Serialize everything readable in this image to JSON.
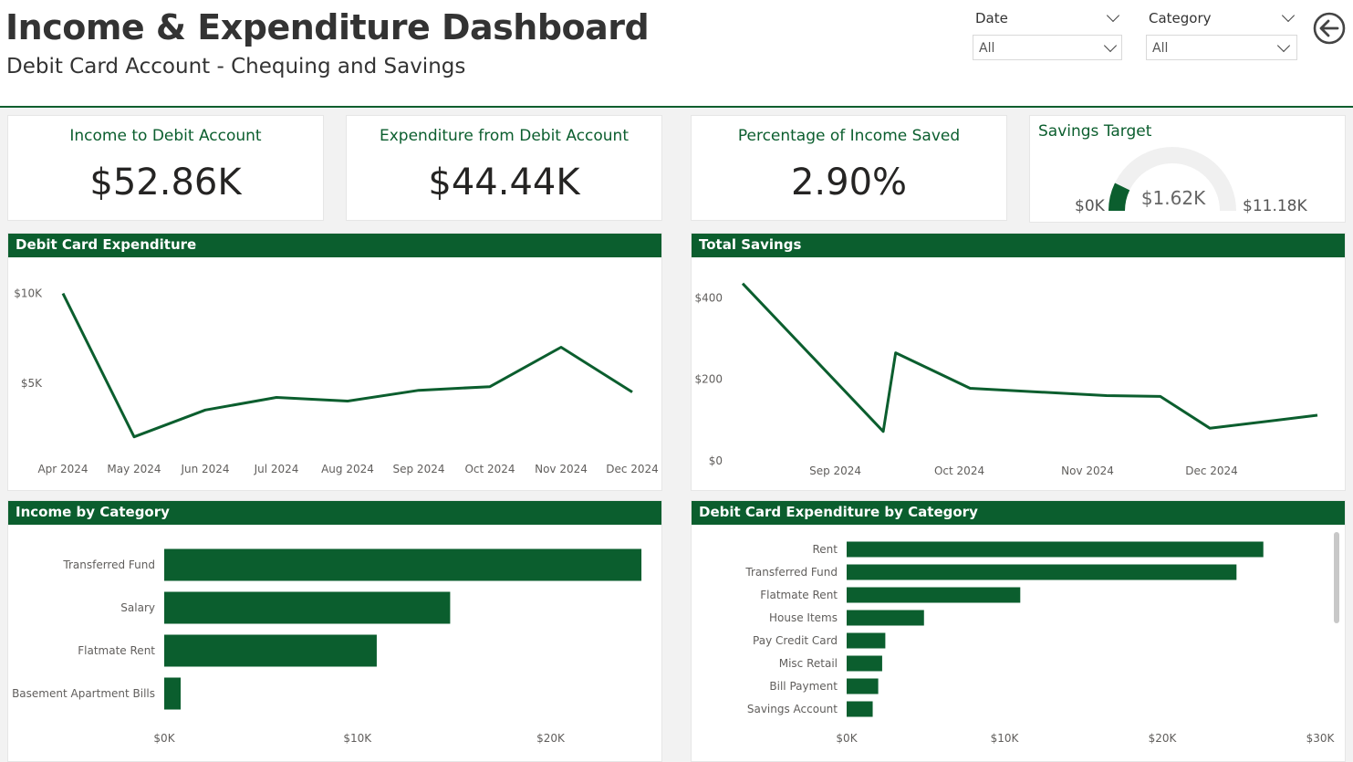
{
  "header": {
    "title": "Income & Expenditure Dashboard",
    "subtitle": "Debit Card Account - Chequing and Savings"
  },
  "slicers": {
    "date": {
      "label": "Date",
      "value": "All"
    },
    "category": {
      "label": "Category",
      "value": "All"
    }
  },
  "back_icon": "back-arrow-icon",
  "colors": {
    "accent": "#0b5e2e",
    "gauge_track": "#f0f0f0",
    "canvas": "#f2f2f2"
  },
  "cards": {
    "income": {
      "title": "Income to Debit Account",
      "value": "$52.86K"
    },
    "expenditure": {
      "title": "Expenditure from Debit Account",
      "value": "$44.44K"
    },
    "saved_pct": {
      "title": "Percentage of Income Saved",
      "value": "2.90%"
    },
    "savings_target": {
      "title": "Savings Target",
      "min_label": "$0K",
      "value_label": "$1.62K",
      "max_label": "$11.18K"
    }
  },
  "chart_data": [
    {
      "id": "debit-expenditure",
      "type": "line",
      "title": "Debit Card Expenditure",
      "x": [
        "Apr 2024",
        "May 2024",
        "Jun 2024",
        "Jul 2024",
        "Aug 2024",
        "Sep 2024",
        "Oct 2024",
        "Nov 2024",
        "Dec 2024"
      ],
      "values": [
        10000,
        2000,
        3500,
        4200,
        4000,
        4600,
        4800,
        7000,
        4500
      ],
      "y_ticks": [
        {
          "label": "$5K",
          "value": 5000
        },
        {
          "label": "$10K",
          "value": 10000
        }
      ],
      "ylim": [
        0,
        11000
      ],
      "grid": false
    },
    {
      "id": "total-savings",
      "type": "line",
      "title": "Total Savings",
      "x_ticks": [
        {
          "label": "Sep 2024",
          "value": "2024-09-01"
        },
        {
          "label": "Oct 2024",
          "value": "2024-10-01"
        },
        {
          "label": "Nov 2024",
          "value": "2024-11-01"
        },
        {
          "label": "Dec 2024",
          "value": "2024-12-01"
        }
      ],
      "xlim": [
        "2024-08-14",
        "2024-12-31"
      ],
      "points": [
        {
          "x": "2024-08-14",
          "y": 435
        },
        {
          "x": "2024-09-17",
          "y": 72
        },
        {
          "x": "2024-09-20",
          "y": 265
        },
        {
          "x": "2024-10-08",
          "y": 178
        },
        {
          "x": "2024-11-10",
          "y": 160
        },
        {
          "x": "2024-11-23",
          "y": 158
        },
        {
          "x": "2024-12-05",
          "y": 80
        },
        {
          "x": "2024-12-31",
          "y": 112
        }
      ],
      "y_ticks": [
        {
          "label": "$0",
          "value": 0
        },
        {
          "label": "$200",
          "value": 200
        },
        {
          "label": "$400",
          "value": 400
        }
      ],
      "ylim": [
        0,
        450
      ],
      "grid": false
    },
    {
      "id": "income-by-category",
      "type": "bar",
      "orientation": "horizontal",
      "title": "Income by Category",
      "categories": [
        "Transferred Fund",
        "Salary",
        "Flatmate Rent",
        "Basement Apartment Bills"
      ],
      "values": [
        24700,
        14800,
        11000,
        850
      ],
      "x_ticks": [
        {
          "label": "$0K",
          "value": 0
        },
        {
          "label": "$10K",
          "value": 10000
        },
        {
          "label": "$20K",
          "value": 20000
        }
      ],
      "xlim": [
        0,
        25500
      ]
    },
    {
      "id": "expenditure-by-category",
      "type": "bar",
      "orientation": "horizontal",
      "title": "Debit Card Expenditure by Category",
      "categories": [
        "Rent",
        "Transferred Fund",
        "Flatmate Rent",
        "House Items",
        "Pay Credit Card",
        "Misc Retail",
        "Bill Payment",
        "Savings Account"
      ],
      "values": [
        26400,
        24700,
        11000,
        4900,
        2450,
        2250,
        2000,
        1650
      ],
      "x_ticks": [
        {
          "label": "$0K",
          "value": 0
        },
        {
          "label": "$10K",
          "value": 10000
        },
        {
          "label": "$20K",
          "value": 20000
        },
        {
          "label": "$30K",
          "value": 30000
        }
      ],
      "xlim": [
        0,
        30000
      ]
    }
  ]
}
